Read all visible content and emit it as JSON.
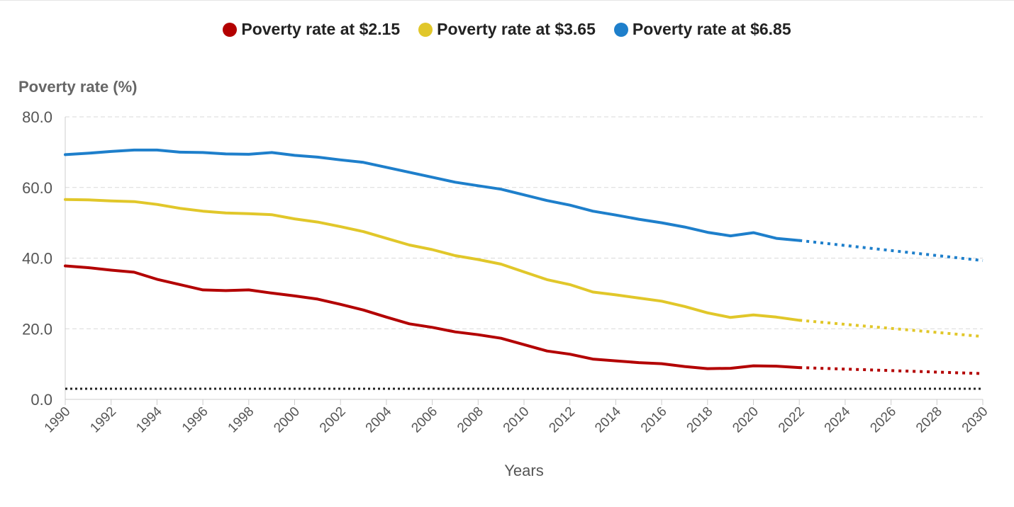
{
  "chart_data": {
    "type": "line",
    "title": "",
    "ylabel": "Poverty rate (%)",
    "xlabel": "Years",
    "ylim": [
      0,
      80
    ],
    "xlim": [
      1990,
      2030
    ],
    "yticks": [
      "0.0",
      "20.0",
      "40.0",
      "60.0",
      "80.0"
    ],
    "xticks": [
      "1990",
      "1992",
      "1994",
      "1996",
      "1998",
      "2000",
      "2002",
      "2004",
      "2006",
      "2008",
      "2010",
      "2012",
      "2014",
      "2016",
      "2018",
      "2020",
      "2022",
      "2024",
      "2026",
      "2028",
      "2030"
    ],
    "grid": true,
    "legend_position": "top-center",
    "series": [
      {
        "name": "Poverty rate at $2.15",
        "color": "#b30000",
        "x": [
          1990,
          1991,
          1992,
          1993,
          1994,
          1995,
          1996,
          1997,
          1998,
          1999,
          2000,
          2001,
          2002,
          2003,
          2004,
          2005,
          2006,
          2007,
          2008,
          2009,
          2010,
          2011,
          2012,
          2013,
          2014,
          2015,
          2016,
          2017,
          2018,
          2019,
          2020,
          2021,
          2022
        ],
        "values": [
          37.8,
          37.3,
          36.6,
          36.0,
          34.0,
          32.5,
          31.0,
          30.8,
          31.0,
          30.1,
          29.3,
          28.4,
          26.9,
          25.3,
          23.3,
          21.4,
          20.4,
          19.1,
          18.3,
          17.3,
          15.5,
          13.7,
          12.8,
          11.4,
          10.9,
          10.4,
          10.1,
          9.3,
          8.7,
          8.8,
          9.5,
          9.4,
          9.0
        ],
        "projection_x": [
          2022,
          2030
        ],
        "projection_values": [
          9.0,
          7.3
        ]
      },
      {
        "name": "Poverty rate at $3.65",
        "color": "#e1c72a",
        "x": [
          1990,
          1991,
          1992,
          1993,
          1994,
          1995,
          1996,
          1997,
          1998,
          1999,
          2000,
          2001,
          2002,
          2003,
          2004,
          2005,
          2006,
          2007,
          2008,
          2009,
          2010,
          2011,
          2012,
          2013,
          2014,
          2015,
          2016,
          2017,
          2018,
          2019,
          2020,
          2021,
          2022
        ],
        "values": [
          56.6,
          56.5,
          56.2,
          56.0,
          55.2,
          54.1,
          53.3,
          52.8,
          52.6,
          52.3,
          51.1,
          50.2,
          48.9,
          47.5,
          45.6,
          43.7,
          42.4,
          40.7,
          39.6,
          38.3,
          36.1,
          33.9,
          32.5,
          30.4,
          29.6,
          28.7,
          27.8,
          26.3,
          24.5,
          23.2,
          23.9,
          23.3,
          22.4
        ],
        "projection_x": [
          2022,
          2030
        ],
        "projection_values": [
          22.4,
          17.8
        ]
      },
      {
        "name": "Poverty rate at $6.85",
        "color": "#1e7fcb",
        "x": [
          1990,
          1991,
          1992,
          1993,
          1994,
          1995,
          1996,
          1997,
          1998,
          1999,
          2000,
          2001,
          2002,
          2003,
          2004,
          2005,
          2006,
          2007,
          2008,
          2009,
          2010,
          2011,
          2012,
          2013,
          2014,
          2015,
          2016,
          2017,
          2018,
          2019,
          2020,
          2021,
          2022
        ],
        "values": [
          69.3,
          69.7,
          70.2,
          70.6,
          70.6,
          70.0,
          69.9,
          69.5,
          69.4,
          69.9,
          69.1,
          68.6,
          67.8,
          67.1,
          65.7,
          64.3,
          62.9,
          61.5,
          60.5,
          59.5,
          57.9,
          56.3,
          55.0,
          53.3,
          52.2,
          51.0,
          50.0,
          48.8,
          47.3,
          46.3,
          47.2,
          45.6,
          45.0
        ],
        "projection_x": [
          2022,
          2030
        ],
        "projection_values": [
          45.0,
          39.3
        ]
      }
    ],
    "reference_line": {
      "value": 3.0,
      "color": "#222222",
      "style": "dotted"
    }
  }
}
